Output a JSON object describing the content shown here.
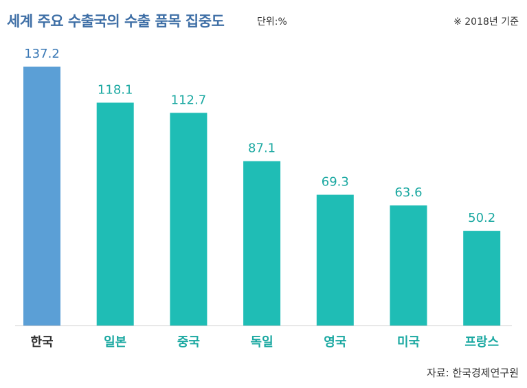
{
  "header": {
    "title": "세계 주요 수출국의 수출 품목 집중도",
    "unit": "단위:%",
    "basis": "※ 2018년 기준"
  },
  "source": "자료: 한국경제연구원",
  "colors": {
    "title": "#3f6fa6",
    "highlight_bar": "#5b9fd6",
    "highlight_text": "#3a78b5",
    "bar": "#1fbdb5",
    "bar_label": "#1aa8a1",
    "highlight_category": "#333333",
    "category": "#1aa8a1",
    "baseline": "#cfcfcf"
  },
  "chart_data": {
    "type": "bar",
    "categories": [
      "한국",
      "일본",
      "중국",
      "독일",
      "영국",
      "미국",
      "프랑스"
    ],
    "values": [
      137.2,
      118.1,
      112.7,
      87.1,
      69.3,
      63.6,
      50.2
    ],
    "value_labels": [
      "137.2",
      "118.1",
      "112.7",
      "87.1",
      "69.3",
      "63.6",
      "50.2"
    ],
    "title": "세계 주요 수출국의 수출 품목 집중도",
    "ylabel": "",
    "ylim": [
      0,
      137.2
    ],
    "highlight_index": 0,
    "grid": false,
    "legend": "none"
  }
}
